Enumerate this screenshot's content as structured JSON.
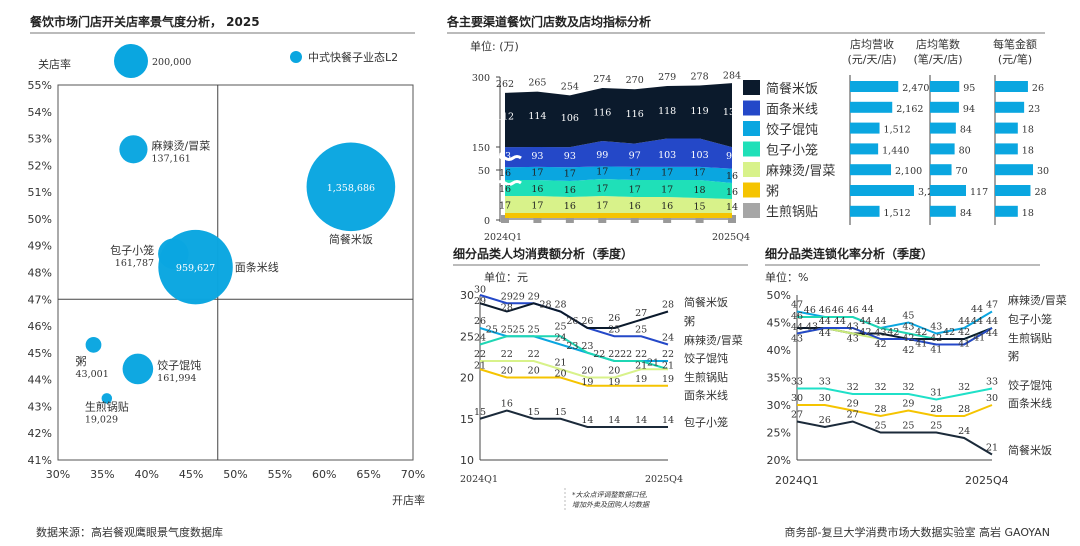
{
  "colors": {
    "bubble": "#0aa6e0",
    "axis": "#555"
  },
  "footer": {
    "source": "数据来源：高岩餐观鹰眼景气度数据库",
    "credit": "商务部-复旦大学消费市场大数据实验室   高岩 GAOYAN",
    "note1": "*大众点评调整数据口径,",
    "note2": "增加外卖及团购人均数据"
  },
  "chart_data": [
    {
      "type": "scatter",
      "title": "餐饮市场门店开关店率景气度分析， 2025",
      "xlabel": "开店率",
      "ylabel": "关店率",
      "xlim": [
        30,
        70
      ],
      "ylim": [
        41,
        55
      ],
      "xticks": [
        "30%",
        "35%",
        "40%",
        "45%",
        "50%",
        "55%",
        "60%",
        "65%",
        "70%"
      ],
      "yticks": [
        "41%",
        "42%",
        "43%",
        "44%",
        "45%",
        "46%",
        "47%",
        "48%",
        "49%",
        "50%",
        "51%",
        "52%",
        "53%",
        "54%",
        "55%"
      ],
      "reference_lines": {
        "x": 48,
        "y": 47
      },
      "legend": {
        "label": "中式快餐子业态L2",
        "size_label": "200,000",
        "size": 200000
      },
      "points": [
        {
          "name": "麻辣烫/冒菜",
          "x": 38.5,
          "y": 52.6,
          "size": 137161,
          "label": "137,161"
        },
        {
          "name": "简餐米饭",
          "x": 63,
          "y": 51.2,
          "size": 1358686,
          "label": "1,358,686"
        },
        {
          "name": "包子小笼",
          "x": 43,
          "y": 48.7,
          "size": 161787,
          "label": "161,787"
        },
        {
          "name": "面条米线",
          "x": 45.5,
          "y": 48.2,
          "size": 959627,
          "label": "959,627"
        },
        {
          "name": "粥",
          "x": 34,
          "y": 45.3,
          "size": 43001,
          "label": "43,001"
        },
        {
          "name": "饺子馄饨",
          "x": 39,
          "y": 44.4,
          "size": 161994,
          "label": "161,994"
        },
        {
          "name": "生煎锅贴",
          "x": 35.5,
          "y": 43.3,
          "size": 19029,
          "label": "19,029"
        }
      ]
    },
    {
      "type": "area",
      "title": "各主要渠道餐饮门店数及店均指标分析",
      "unit": "单位: (万)",
      "x_first": "2024Q1",
      "x_last": "2025Q4",
      "yticks": [
        "0",
        "50",
        "150",
        "300"
      ],
      "totals": [
        262,
        265,
        254,
        274,
        270,
        279,
        278,
        284
      ],
      "series": [
        {
          "name": "生煎锅贴",
          "color": "#a6a6a6",
          "values": [
            2,
            2,
            2,
            2,
            2,
            2,
            2,
            2
          ]
        },
        {
          "name": "粥",
          "color": "#f5c400",
          "values": [
            5,
            5,
            5,
            5,
            5,
            5,
            5,
            5
          ]
        },
        {
          "name": "麻辣烫/冒菜",
          "color": "#d8f28a",
          "values": [
            17,
            17,
            16,
            17,
            16,
            16,
            15,
            14
          ]
        },
        {
          "name": "包子小笼",
          "color": "#1fe0b8",
          "values": [
            16,
            16,
            16,
            17,
            17,
            17,
            18,
            16
          ]
        },
        {
          "name": "饺子馄饨",
          "color": "#0aa6e0",
          "values": [
            16,
            17,
            17,
            17,
            17,
            17,
            17,
            16
          ]
        },
        {
          "name": "面条米线",
          "color": "#2448c8",
          "values": [
            93,
            93,
            93,
            99,
            97,
            103,
            103,
            96
          ]
        },
        {
          "name": "简餐米饭",
          "color": "#0b1a2c",
          "values": [
            112,
            114,
            106,
            116,
            116,
            118,
            119,
            136
          ]
        }
      ]
    },
    {
      "type": "table",
      "headers": [
        [
          "店均营收",
          "(元/天/店)"
        ],
        [
          "店均笔数",
          "(笔/天/店)"
        ],
        [
          "每笔金额",
          "(元/笔)"
        ]
      ],
      "rows": [
        {
          "name": "简餐米饭",
          "color": "#0b1a2c",
          "values": [
            2470,
            95,
            26
          ],
          "labels": [
            "2,470",
            "95",
            "26"
          ]
        },
        {
          "name": "面条米线",
          "color": "#2448c8",
          "values": [
            2162,
            94,
            23
          ],
          "labels": [
            "2,162",
            "94",
            "23"
          ]
        },
        {
          "name": "饺子馄饨",
          "color": "#0aa6e0",
          "values": [
            1512,
            84,
            18
          ],
          "labels": [
            "1,512",
            "84",
            "18"
          ]
        },
        {
          "name": "包子小笼",
          "color": "#1fe0b8",
          "values": [
            1440,
            80,
            18
          ],
          "labels": [
            "1,440",
            "80",
            "18"
          ]
        },
        {
          "name": "麻辣烫/冒菜",
          "color": "#d8f28a",
          "values": [
            2100,
            70,
            30
          ],
          "labels": [
            "2,100",
            "70",
            "30"
          ]
        },
        {
          "name": "粥",
          "color": "#f5c400",
          "values": [
            3276,
            117,
            28
          ],
          "labels": [
            "3,276",
            "117",
            "28"
          ]
        },
        {
          "name": "生煎锅贴",
          "color": "#a6a6a6",
          "values": [
            1512,
            84,
            18
          ],
          "labels": [
            "1,512",
            "84",
            "18"
          ]
        }
      ]
    },
    {
      "type": "line",
      "title": "细分品类人均消费额分析（季度）",
      "unit": "单位：元",
      "ylim": [
        10,
        30
      ],
      "yticks": [
        "10",
        "15",
        "20",
        "25",
        "30"
      ],
      "x_first": "2024Q1",
      "x_last": "2025Q4",
      "right_labels": [
        "简餐米饭",
        "粥",
        "麻辣烫/冒菜",
        "饺子馄饨",
        "生煎锅贴",
        "面条米线",
        "包子小笼"
      ],
      "series": [
        {
          "name": "面条米线",
          "color": "#2448c8",
          "values": [
            30,
            29,
            29,
            28,
            26,
            25,
            25,
            24
          ]
        },
        {
          "name": "简餐米饭",
          "color": "#0b1a2c",
          "values": [
            29,
            28,
            29,
            28,
            26,
            26,
            27,
            28
          ]
        },
        {
          "name": "饺子馄饨",
          "color": "#0aa6e0",
          "values": [
            26,
            25,
            25,
            24,
            23,
            22,
            22,
            22
          ]
        },
        {
          "name": "包子小笼",
          "color": "#1fd6b4",
          "values": [
            24,
            25,
            25,
            25,
            23,
            22,
            22,
            21
          ]
        },
        {
          "name": "麻辣烫/冒菜",
          "color": "#d8f28a",
          "values": [
            22,
            22,
            22,
            21,
            20,
            20,
            21,
            21
          ]
        },
        {
          "name": "粥",
          "color": "#f5c400",
          "values": [
            21,
            20,
            20,
            20,
            19,
            19,
            19,
            19
          ]
        },
        {
          "name": "生煎锅贴",
          "color": "#1b2a3a",
          "values": [
            15,
            16,
            15,
            15,
            14,
            14,
            14,
            14
          ]
        }
      ]
    },
    {
      "type": "line",
      "title": "细分品类连锁化率分析（季度）",
      "unit": "单位：%",
      "ylim": [
        20,
        50
      ],
      "yticks": [
        "20%",
        "25%",
        "30%",
        "35%",
        "40%",
        "45%",
        "50%"
      ],
      "x_first": "2024Q1",
      "x_last": "2025Q4",
      "right_labels": [
        "麻辣烫/冒菜",
        "包子小笼",
        "生煎锅贴",
        "粥",
        "饺子馄饨",
        "面条米线",
        "简餐米饭"
      ],
      "series": [
        {
          "name": "麻辣烫/冒菜",
          "color": "#0aa6e0",
          "values": [
            47,
            46,
            46,
            44,
            45,
            43,
            44,
            47
          ]
        },
        {
          "name": "包子小笼",
          "color": "#1fd6b4",
          "values": [
            46,
            46,
            46,
            44,
            43,
            42,
            42,
            44
          ]
        },
        {
          "name": "生煎锅贴",
          "color": "#0b1a2c",
          "values": [
            44,
            44,
            43,
            43,
            42,
            42,
            42,
            44
          ]
        },
        {
          "name": "粥",
          "color": "#c8ea7a",
          "values": [
            43,
            44,
            43,
            42,
            42,
            41,
            41,
            44
          ]
        },
        {
          "name": "面条米线-组",
          "color": "#2448c8",
          "values": [
            43,
            44,
            44,
            42,
            42,
            41,
            41,
            44
          ]
        },
        {
          "name": "饺子馄饨",
          "color": "#1fe0c8",
          "values": [
            33,
            33,
            32,
            32,
            32,
            31,
            32,
            33
          ]
        },
        {
          "name": "面条米线",
          "color": "#f5c400",
          "values": [
            30,
            30,
            29,
            28,
            29,
            28,
            28,
            30
          ]
        },
        {
          "name": "简餐米饭",
          "color": "#1b2a3a",
          "values": [
            27,
            26,
            27,
            25,
            25,
            25,
            24,
            21
          ]
        }
      ]
    }
  ]
}
